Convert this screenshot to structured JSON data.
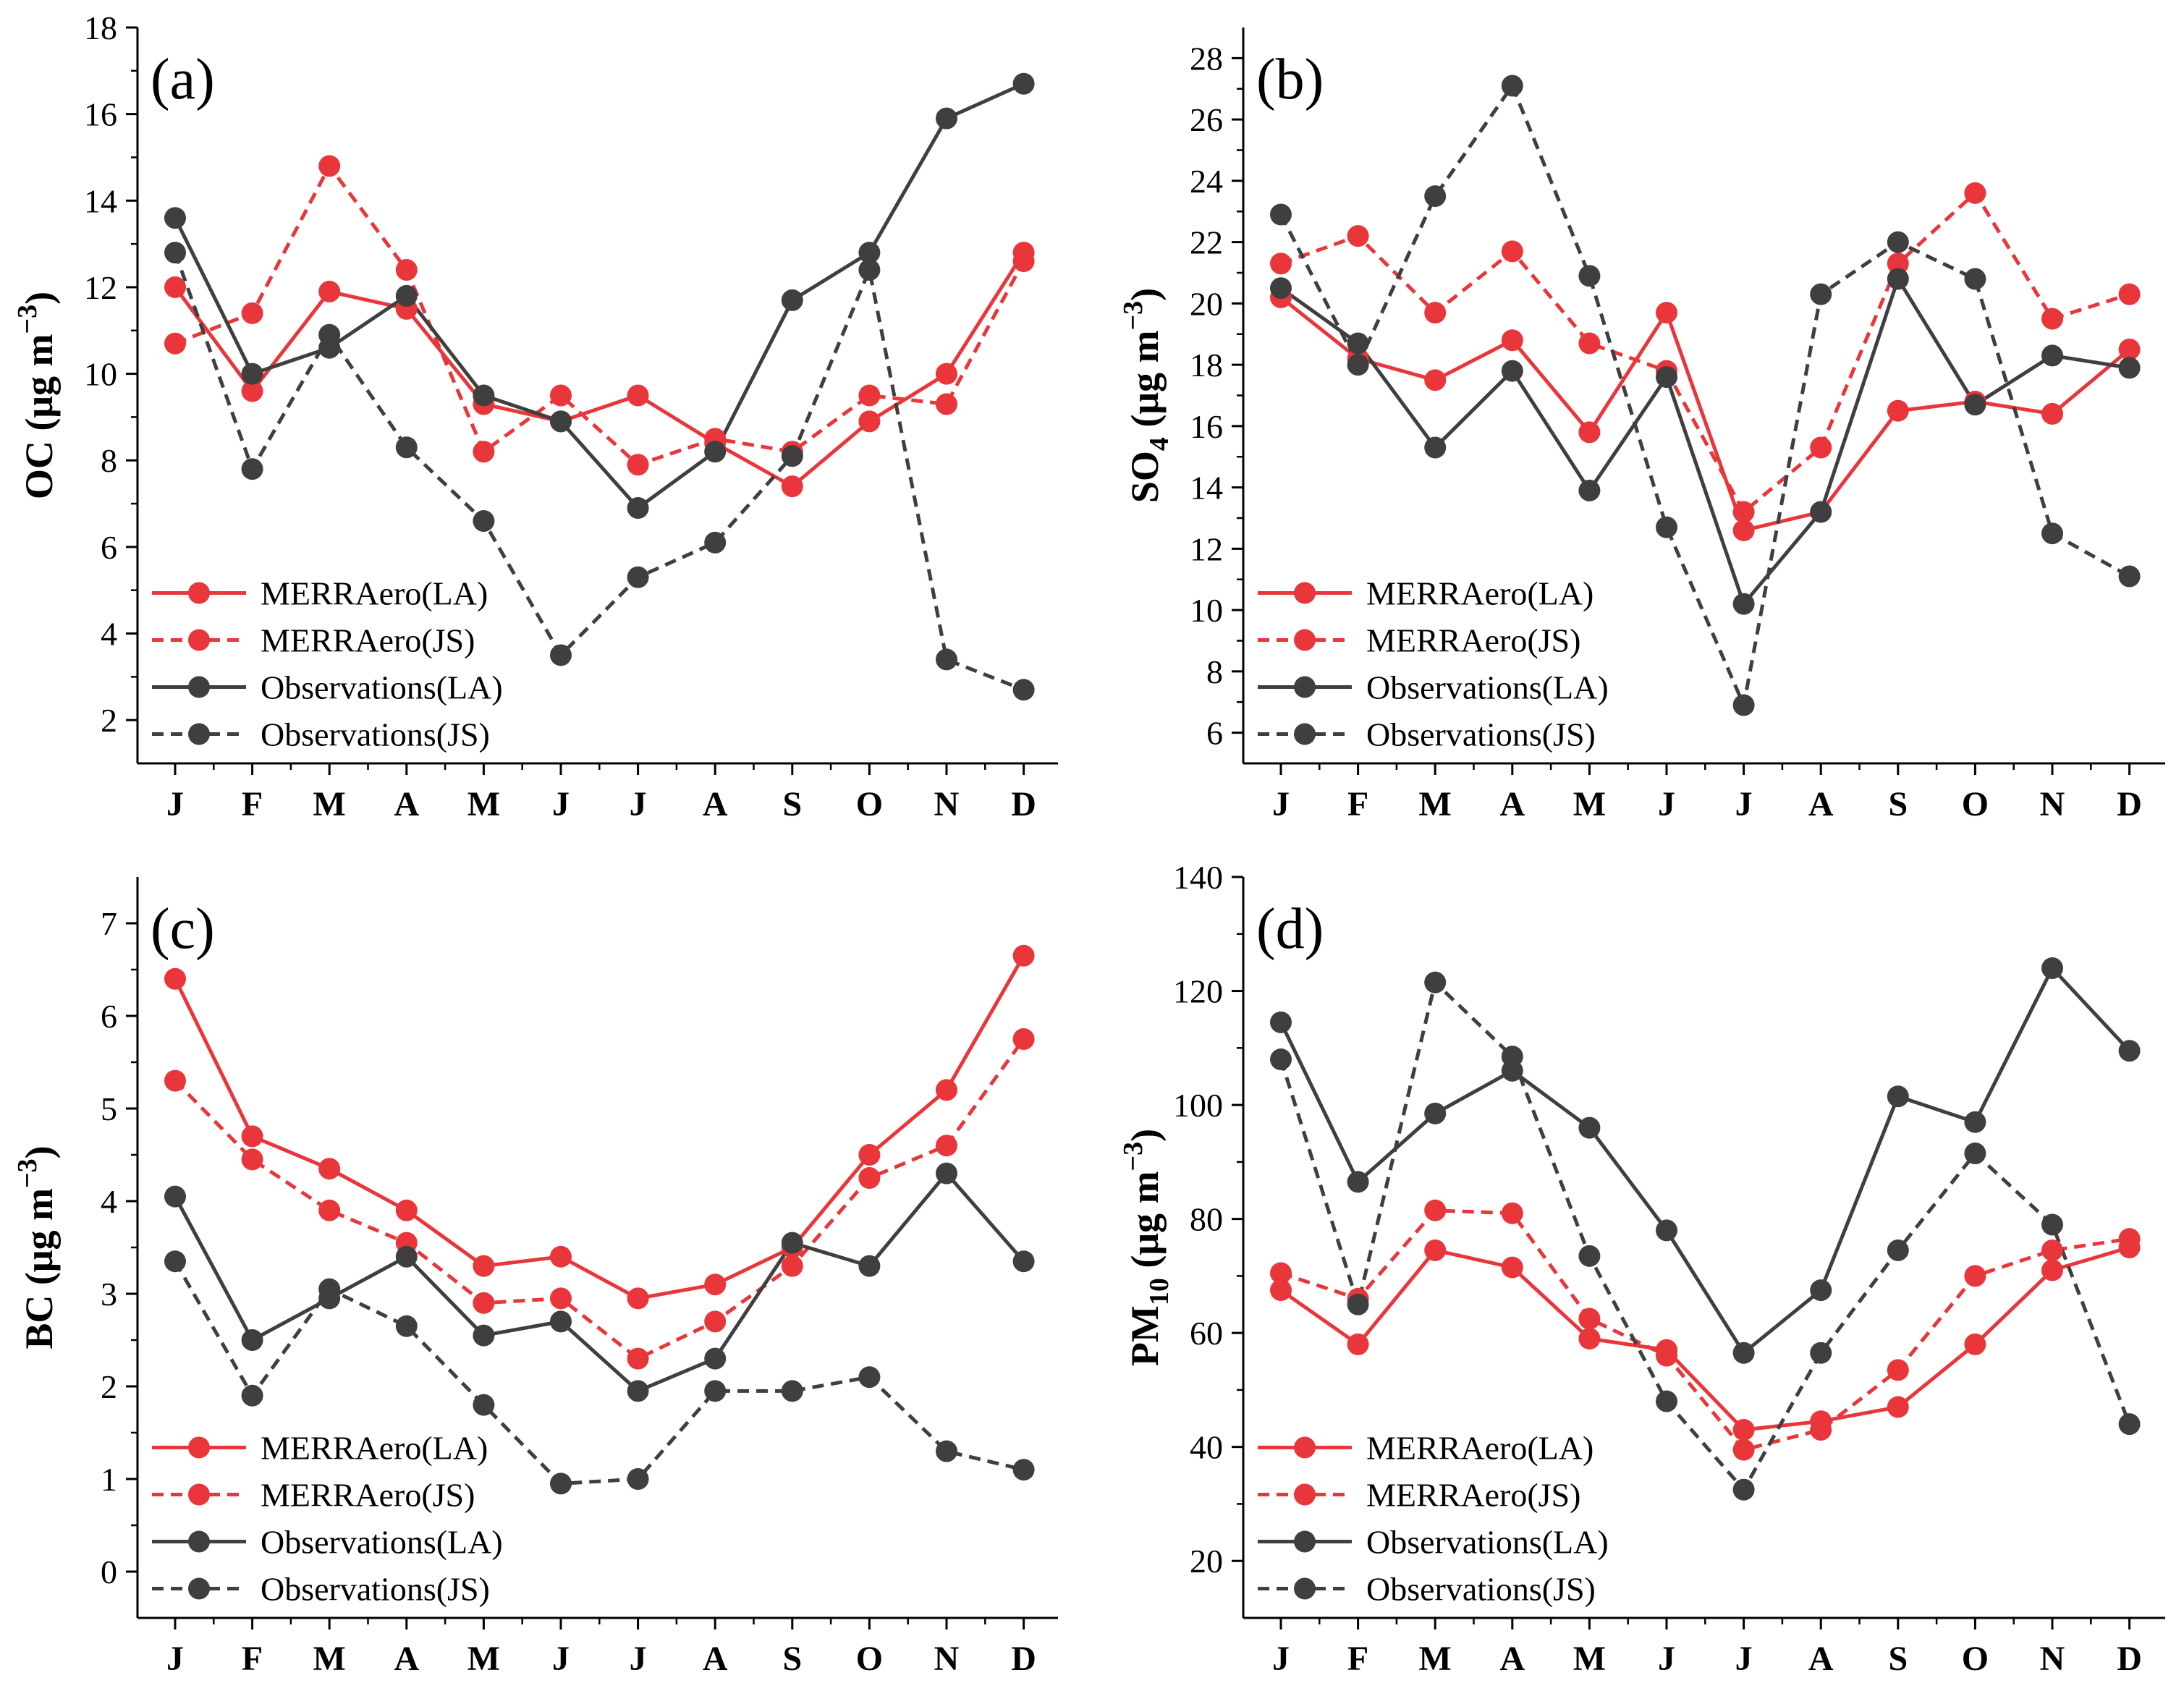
{
  "colors": {
    "merra": "#e8363a",
    "obs": "#3f3f3f",
    "axis": "#000000"
  },
  "chart_data": [
    {
      "id": "a",
      "type": "line",
      "panel_label": "(a)",
      "ylabel": {
        "main": "OC (μg m",
        "sup": "−3",
        "tail": ")"
      },
      "categories": [
        "J",
        "F",
        "M",
        "A",
        "M",
        "J",
        "J",
        "A",
        "S",
        "O",
        "N",
        "D"
      ],
      "ylim": [
        1,
        18
      ],
      "yticks": [
        2,
        4,
        6,
        8,
        10,
        12,
        14,
        16,
        18
      ],
      "ytick_labels": [
        "2",
        "4",
        "6",
        "8",
        "10",
        "12",
        "14",
        "16",
        "18"
      ],
      "legend_position": "bottom-left",
      "series": [
        {
          "name": "MERRAero(LA)",
          "style": "solid",
          "color": "merra",
          "values": [
            12.0,
            9.6,
            11.9,
            11.5,
            9.3,
            8.9,
            9.5,
            8.4,
            7.4,
            8.9,
            10.0,
            12.8
          ]
        },
        {
          "name": "MERRAero(JS)",
          "style": "dashed",
          "color": "merra",
          "values": [
            10.7,
            11.4,
            14.8,
            12.4,
            8.2,
            9.5,
            7.9,
            8.5,
            8.2,
            9.5,
            9.3,
            12.6
          ]
        },
        {
          "name": "Observations(LA)",
          "style": "solid",
          "color": "obs",
          "values": [
            13.6,
            10.0,
            10.6,
            11.8,
            9.5,
            8.9,
            6.9,
            8.2,
            11.7,
            12.8,
            15.9,
            16.7
          ]
        },
        {
          "name": "Observations(JS)",
          "style": "dashed",
          "color": "obs",
          "values": [
            12.8,
            7.8,
            10.9,
            8.3,
            6.6,
            3.5,
            5.3,
            6.1,
            8.1,
            12.4,
            3.4,
            2.7
          ]
        }
      ]
    },
    {
      "id": "b",
      "type": "line",
      "panel_label": "(b)",
      "ylabel": {
        "main": "SO",
        "sub": "4",
        "tail": " (μg m",
        "sup": "−3",
        "tail2": ")"
      },
      "categories": [
        "J",
        "F",
        "M",
        "A",
        "M",
        "J",
        "J",
        "A",
        "S",
        "O",
        "N",
        "D"
      ],
      "ylim": [
        5,
        29
      ],
      "yticks": [
        6,
        8,
        10,
        12,
        14,
        16,
        18,
        20,
        22,
        24,
        26,
        28
      ],
      "ytick_labels": [
        "6",
        "8",
        "10",
        "12",
        "14",
        "16",
        "18",
        "20",
        "22",
        "24",
        "26",
        "28"
      ],
      "legend_position": "bottom-left",
      "series": [
        {
          "name": "MERRAero(LA)",
          "style": "solid",
          "color": "merra",
          "values": [
            20.2,
            18.2,
            17.5,
            18.8,
            15.8,
            19.7,
            12.6,
            13.2,
            16.5,
            16.8,
            16.4,
            18.5
          ]
        },
        {
          "name": "MERRAero(JS)",
          "style": "dashed",
          "color": "merra",
          "values": [
            21.3,
            22.2,
            19.7,
            21.7,
            18.7,
            17.8,
            13.2,
            15.3,
            21.3,
            23.6,
            19.5,
            20.3
          ]
        },
        {
          "name": "Observations(LA)",
          "style": "solid",
          "color": "obs",
          "values": [
            20.5,
            18.7,
            15.3,
            17.8,
            13.9,
            17.6,
            10.2,
            13.2,
            20.8,
            16.7,
            18.3,
            17.9
          ]
        },
        {
          "name": "Observations(JS)",
          "style": "dashed",
          "color": "obs",
          "values": [
            22.9,
            18.0,
            23.5,
            27.1,
            20.9,
            12.7,
            6.9,
            20.3,
            22.0,
            20.8,
            12.5,
            11.1
          ]
        }
      ]
    },
    {
      "id": "c",
      "type": "line",
      "panel_label": "(c)",
      "ylabel": {
        "main": "BC (μg m",
        "sup": "−3",
        "tail": ")"
      },
      "categories": [
        "J",
        "F",
        "M",
        "A",
        "M",
        "J",
        "J",
        "A",
        "S",
        "O",
        "N",
        "D"
      ],
      "ylim": [
        -0.5,
        7.5
      ],
      "yticks": [
        0,
        1,
        2,
        3,
        4,
        5,
        6,
        7
      ],
      "ytick_labels": [
        "0",
        "1",
        "2",
        "3",
        "4",
        "5",
        "6",
        "7"
      ],
      "legend_position": "bottom-left",
      "series": [
        {
          "name": "MERRAero(LA)",
          "style": "solid",
          "color": "merra",
          "values": [
            6.4,
            4.7,
            4.35,
            3.9,
            3.3,
            3.4,
            2.95,
            3.1,
            3.5,
            4.5,
            5.2,
            6.65
          ]
        },
        {
          "name": "MERRAero(JS)",
          "style": "dashed",
          "color": "merra",
          "values": [
            5.3,
            4.45,
            3.9,
            3.55,
            2.9,
            2.95,
            2.3,
            2.7,
            3.3,
            4.25,
            4.6,
            5.75
          ]
        },
        {
          "name": "Observations(LA)",
          "style": "solid",
          "color": "obs",
          "values": [
            4.05,
            2.5,
            2.95,
            3.4,
            2.55,
            2.7,
            1.95,
            2.3,
            3.55,
            3.3,
            4.3,
            3.35
          ]
        },
        {
          "name": "Observations(JS)",
          "style": "dashed",
          "color": "obs",
          "values": [
            3.35,
            1.9,
            3.05,
            2.65,
            1.8,
            0.95,
            1.0,
            1.95,
            1.95,
            2.1,
            1.3,
            1.1
          ]
        }
      ]
    },
    {
      "id": "d",
      "type": "line",
      "panel_label": "(d)",
      "ylabel": {
        "main": "PM",
        "sub": "10",
        "tail": " (μg m",
        "sup": "−3",
        "tail2": ")"
      },
      "categories": [
        "J",
        "F",
        "M",
        "A",
        "M",
        "J",
        "J",
        "A",
        "S",
        "O",
        "N",
        "D"
      ],
      "ylim": [
        10,
        140
      ],
      "yticks": [
        20,
        40,
        60,
        80,
        100,
        120,
        140
      ],
      "ytick_labels": [
        "20",
        "40",
        "60",
        "80",
        "100",
        "120",
        "140"
      ],
      "legend_position": "bottom-left",
      "series": [
        {
          "name": "MERRAero(LA)",
          "style": "solid",
          "color": "merra",
          "values": [
            67.5,
            58.0,
            74.5,
            71.5,
            59.0,
            57.0,
            43.0,
            44.5,
            47.0,
            58.0,
            71.0,
            75.0
          ]
        },
        {
          "name": "MERRAero(JS)",
          "style": "dashed",
          "color": "merra",
          "values": [
            70.5,
            66.0,
            81.5,
            81.0,
            62.5,
            56.0,
            39.5,
            43.0,
            53.5,
            70.0,
            74.5,
            76.5
          ]
        },
        {
          "name": "Observations(LA)",
          "style": "solid",
          "color": "obs",
          "values": [
            114.5,
            86.5,
            98.5,
            106.0,
            96.0,
            78.0,
            56.5,
            67.5,
            101.5,
            97.0,
            124.0,
            109.5
          ]
        },
        {
          "name": "Observations(JS)",
          "style": "dashed",
          "color": "obs",
          "values": [
            108.0,
            65.0,
            121.5,
            108.5,
            73.5,
            48.0,
            32.5,
            56.5,
            74.5,
            91.5,
            79.0,
            44.0
          ]
        }
      ]
    }
  ]
}
